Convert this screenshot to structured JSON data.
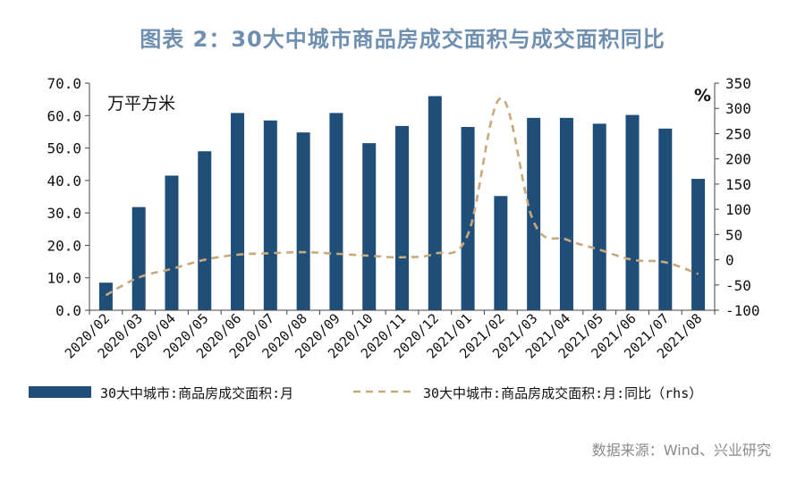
{
  "title": "图表 2：30大中城市商品房成交面积与成交面积同比",
  "source": "数据来源：Wind、兴业研究",
  "chart_data": {
    "type": "bar",
    "categories": [
      "2020/02",
      "2020/03",
      "2020/04",
      "2020/05",
      "2020/06",
      "2020/07",
      "2020/08",
      "2020/09",
      "2020/10",
      "2020/11",
      "2020/12",
      "2021/01",
      "2021/02",
      "2021/03",
      "2021/04",
      "2021/05",
      "2021/06",
      "2021/07",
      "2021/08"
    ],
    "left_axis": {
      "unit_label": "万平方米",
      "ylim": [
        0,
        70
      ],
      "ticks": [
        "0.0",
        "10.0",
        "20.0",
        "30.0",
        "40.0",
        "50.0",
        "60.0",
        "70.0"
      ]
    },
    "right_axis": {
      "unit_label": "%",
      "ylim": [
        -100,
        350
      ],
      "ticks": [
        "-100",
        "-50",
        "0",
        "50",
        "100",
        "150",
        "200",
        "250",
        "300",
        "350"
      ]
    },
    "series": [
      {
        "name": "30大中城市:商品房成交面积:月",
        "kind": "bar",
        "axis": "left",
        "color": "#1f4e79",
        "values": [
          8.5,
          31.8,
          41.5,
          49.0,
          60.8,
          58.5,
          54.8,
          60.8,
          51.5,
          56.8,
          66.0,
          56.5,
          35.2,
          59.3,
          59.3,
          57.5,
          60.2,
          56.0,
          40.5
        ]
      },
      {
        "name": "30大中城市:商品房成交面积:月:同比（rhs）",
        "kind": "line",
        "axis": "right",
        "style": "dashed",
        "color": "#c8a97e",
        "values": [
          -70,
          -35,
          -18,
          0,
          10,
          13,
          15,
          12,
          8,
          5,
          12,
          50,
          320,
          75,
          40,
          20,
          0,
          -5,
          -28
        ]
      }
    ],
    "legend_position": "bottom",
    "grid": false
  }
}
